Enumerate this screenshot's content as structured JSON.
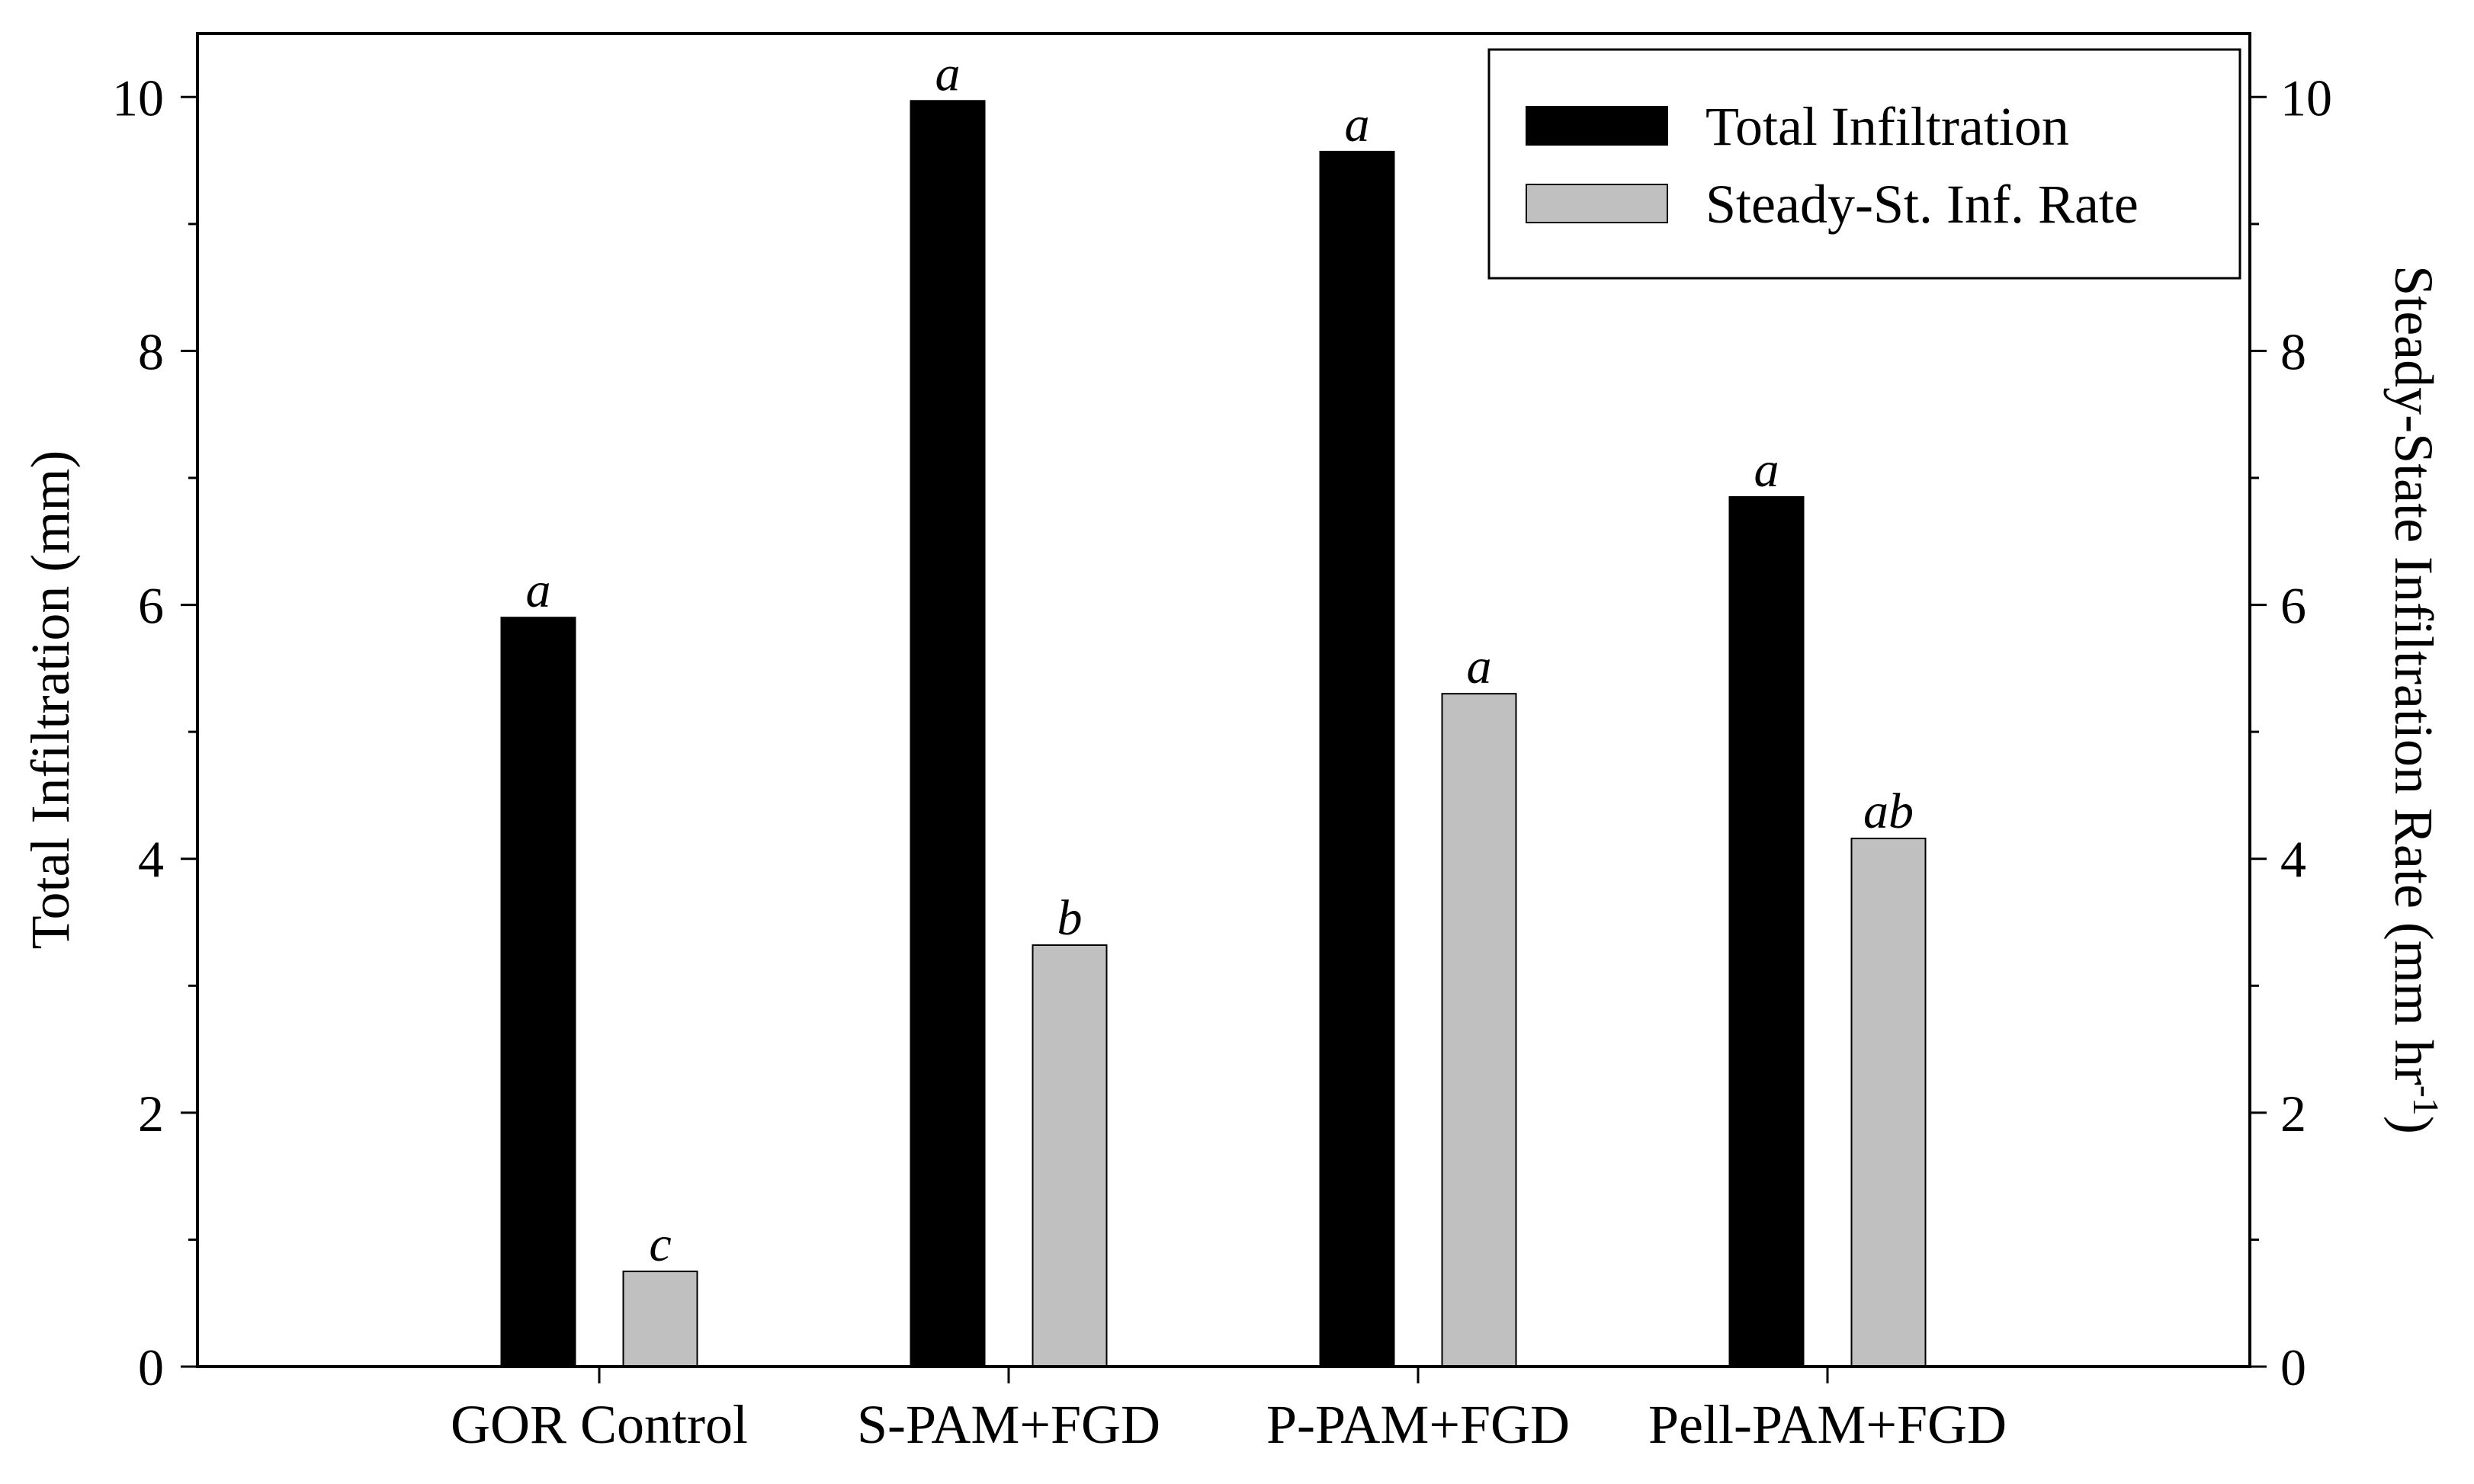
{
  "chart_data": {
    "type": "bar",
    "categories": [
      "GOR Control",
      "S-PAM+FGD",
      "P-PAM+FGD",
      "Pell-PAM+FGD"
    ],
    "series": [
      {
        "name": "Total Infiltration",
        "axis": "left",
        "color": "#000000",
        "values": [
          5.9,
          9.97,
          9.57,
          6.85
        ],
        "significance": [
          "a",
          "a",
          "a",
          "a"
        ]
      },
      {
        "name": "Steady-St. Inf. Rate",
        "axis": "right",
        "color": "#c0c0c0",
        "values": [
          0.75,
          3.32,
          5.3,
          4.16
        ],
        "significance": [
          "c",
          "b",
          "a",
          "ab"
        ]
      }
    ],
    "ylabel_left": "Total Infiltration (mm)",
    "ylabel_right": "Steady-State Infiltration Rate (mm hr",
    "ylabel_right_superscript": "-1",
    "ylabel_right_suffix": ")",
    "ylim_left": [
      0,
      10.5
    ],
    "ylim_right": [
      0,
      10.5
    ],
    "yticks": [
      0,
      2,
      4,
      6,
      8,
      10
    ],
    "ytick_labels": [
      "0",
      "2",
      "4",
      "6",
      "8",
      "10"
    ],
    "grid": false,
    "legend_position": "top-right"
  }
}
